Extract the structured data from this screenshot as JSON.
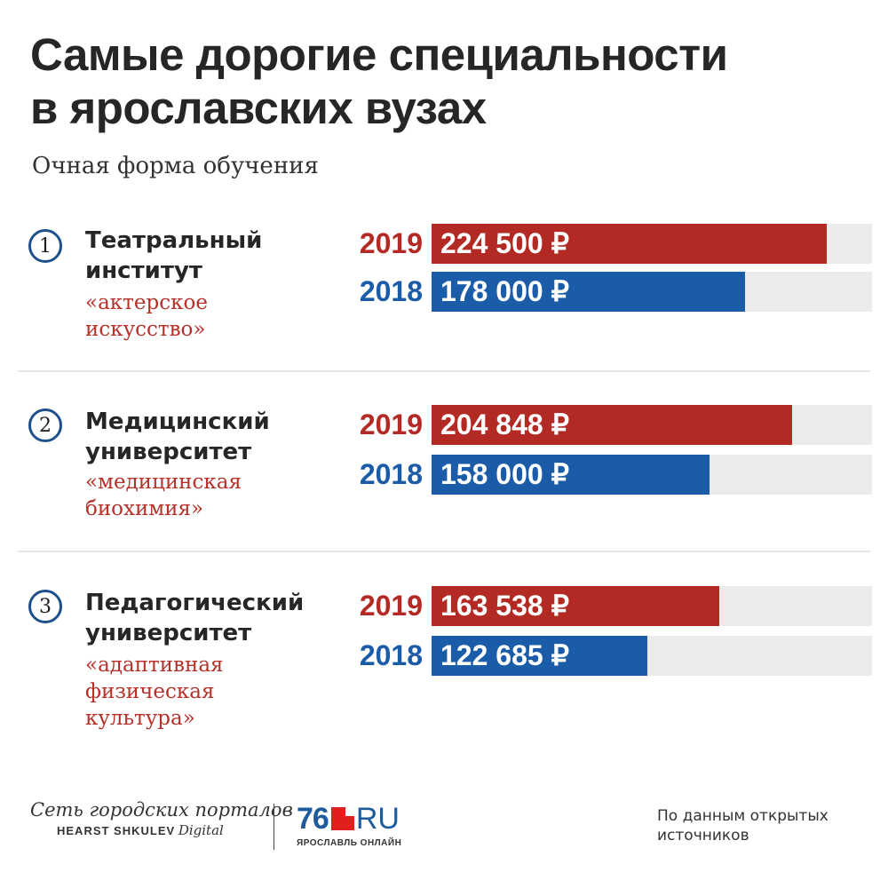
{
  "header": {
    "title_lines": [
      "Самые дорогие специальности",
      "в ярославских вузах"
    ],
    "subtitle": "Очная форма обучения"
  },
  "colors": {
    "y2019": "#b32a25",
    "y2018": "#1a5ca8",
    "track": "#ebebeb",
    "specialty": "#b5312a"
  },
  "chart_data": {
    "type": "bar",
    "orientation": "horizontal",
    "title": "Самые дорогие специальности в ярославских вузах",
    "subtitle": "Очная форма обучения",
    "categories": [
      {
        "rank": "1",
        "institution_lines": [
          "Театральный",
          "институт"
        ],
        "specialty_lines": [
          "«актерское",
          "искусство»"
        ]
      },
      {
        "rank": "2",
        "institution_lines": [
          "Медицинский",
          "университет"
        ],
        "specialty_lines": [
          "«медицинская",
          "биохимия»"
        ]
      },
      {
        "rank": "3",
        "institution_lines": [
          "Педагогический",
          "университет"
        ],
        "specialty_lines": [
          "«адаптивная",
          "физическая",
          "культура»"
        ]
      }
    ],
    "series": [
      {
        "name": "2019",
        "values": [
          224500,
          204848,
          163538
        ],
        "labels": [
          "224 500 ₽",
          "204 848 ₽",
          "163 538 ₽"
        ]
      },
      {
        "name": "2018",
        "values": [
          178000,
          158000,
          122685
        ],
        "labels": [
          "178 000 ₽",
          "158 000 ₽",
          "122 685 ₽"
        ]
      }
    ],
    "xlim": [
      0,
      250000
    ],
    "grid": false
  },
  "footer": {
    "brand_main": "Сеть городских порталов",
    "brand_sub_bold": "HEARST SHKULEV",
    "brand_sub_italic": "Digital",
    "logo_num": "76",
    "logo_ru": "RU",
    "logo_tagline": "ЯРОСЛАВЛЬ ОНЛАЙН",
    "source_lines": [
      "По данным открытых",
      "источников"
    ]
  }
}
